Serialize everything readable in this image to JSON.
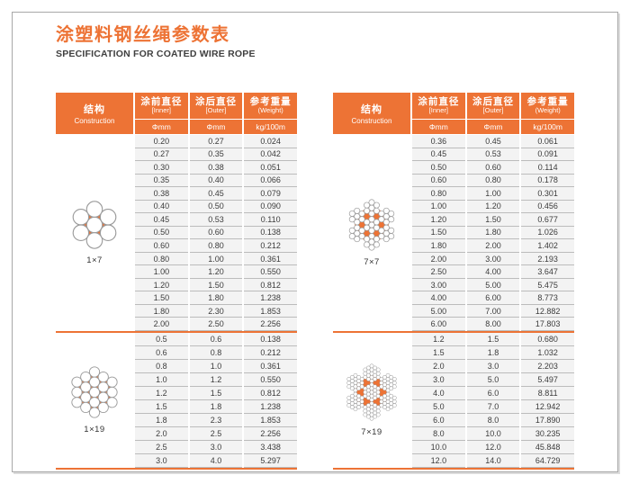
{
  "header": {
    "title_zh": "涂塑料钢丝绳参数表",
    "subtitle_en": "SPECIFICATION FOR COATED WIRE ROPE"
  },
  "colors": {
    "accent_orange": "#ED7335",
    "row_bg": "#f3f3f3",
    "row_line": "#bcbcbc",
    "wire_stroke": "#9b9b9b"
  },
  "columns": {
    "construction_zh": "结构",
    "construction_en": "Construction",
    "col1_zh": "涂前直径",
    "col1_en": "[Inner]",
    "col2_zh": "涂后直径",
    "col2_en": "[Outer]",
    "col3_zh": "参考重量",
    "col3_en": "(Weight)",
    "unit_diameter": "Φmm",
    "unit_weight": "kg/100m"
  },
  "tables": [
    {
      "sections": [
        {
          "label": "1×7",
          "pattern": "1x7",
          "rows": [
            [
              "0.20",
              "0.27",
              "0.024"
            ],
            [
              "0.27",
              "0.35",
              "0.042"
            ],
            [
              "0.30",
              "0.38",
              "0.051"
            ],
            [
              "0.35",
              "0.40",
              "0.066"
            ],
            [
              "0.38",
              "0.45",
              "0.079"
            ],
            [
              "0.40",
              "0.50",
              "0.090"
            ],
            [
              "0.45",
              "0.53",
              "0.110"
            ],
            [
              "0.50",
              "0.60",
              "0.138"
            ],
            [
              "0.60",
              "0.80",
              "0.212"
            ],
            [
              "0.80",
              "1.00",
              "0.361"
            ],
            [
              "1.00",
              "1.20",
              "0.550"
            ],
            [
              "1.20",
              "1.50",
              "0.812"
            ],
            [
              "1.50",
              "1.80",
              "1.238"
            ],
            [
              "1.80",
              "2.30",
              "1.853"
            ],
            [
              "2.00",
              "2.50",
              "2.256"
            ]
          ]
        },
        {
          "label": "1×19",
          "pattern": "1x19",
          "rows": [
            [
              "0.5",
              "0.6",
              "0.138"
            ],
            [
              "0.6",
              "0.8",
              "0.212"
            ],
            [
              "0.8",
              "1.0",
              "0.361"
            ],
            [
              "1.0",
              "1.2",
              "0.550"
            ],
            [
              "1.2",
              "1.5",
              "0.812"
            ],
            [
              "1.5",
              "1.8",
              "1.238"
            ],
            [
              "1.8",
              "2.3",
              "1.853"
            ],
            [
              "2.0",
              "2.5",
              "2.256"
            ],
            [
              "2.5",
              "3.0",
              "3.438"
            ],
            [
              "3.0",
              "4.0",
              "5.297"
            ]
          ]
        }
      ]
    },
    {
      "sections": [
        {
          "label": "7×7",
          "pattern": "7x7",
          "rows": [
            [
              "0.36",
              "0.45",
              "0.061"
            ],
            [
              "0.45",
              "0.53",
              "0.091"
            ],
            [
              "0.50",
              "0.60",
              "0.114"
            ],
            [
              "0.60",
              "0.80",
              "0.178"
            ],
            [
              "0.80",
              "1.00",
              "0.301"
            ],
            [
              "1.00",
              "1.20",
              "0.456"
            ],
            [
              "1.20",
              "1.50",
              "0.677"
            ],
            [
              "1.50",
              "1.80",
              "1.026"
            ],
            [
              "1.80",
              "2.00",
              "1.402"
            ],
            [
              "2.00",
              "3.00",
              "2.193"
            ],
            [
              "2.50",
              "4.00",
              "3.647"
            ],
            [
              "3.00",
              "5.00",
              "5.475"
            ],
            [
              "4.00",
              "6.00",
              "8.773"
            ],
            [
              "5.00",
              "7.00",
              "12.882"
            ],
            [
              "6.00",
              "8.00",
              "17.803"
            ]
          ]
        },
        {
          "label": "7×19",
          "pattern": "7x19",
          "rows": [
            [
              "1.2",
              "1.5",
              "0.680"
            ],
            [
              "1.5",
              "1.8",
              "1.032"
            ],
            [
              "2.0",
              "3.0",
              "2.203"
            ],
            [
              "3.0",
              "5.0",
              "5.497"
            ],
            [
              "4.0",
              "6.0",
              "8.811"
            ],
            [
              "5.0",
              "7.0",
              "12.942"
            ],
            [
              "6.0",
              "8.0",
              "17.890"
            ],
            [
              "8.0",
              "10.0",
              "30.235"
            ],
            [
              "10.0",
              "12.0",
              "45.848"
            ],
            [
              "12.0",
              "14.0",
              "64.729"
            ]
          ]
        }
      ]
    }
  ]
}
